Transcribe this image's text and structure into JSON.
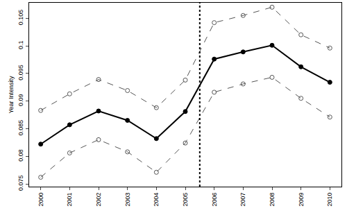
{
  "chart_data": {
    "type": "line",
    "y_label": "Year Intensity",
    "x": [
      2000,
      2001,
      2002,
      2003,
      2004,
      2005,
      2006,
      2007,
      2008,
      2009,
      2010
    ],
    "series": [
      {
        "color": "#000000",
        "line_style": "solid",
        "marker": "filled",
        "values": [
          0.0822,
          0.0857,
          0.0882,
          0.0865,
          0.0832,
          0.0881,
          0.0976,
          0.0989,
          0.1001,
          0.0962,
          0.0934
        ]
      },
      {
        "color": "#555555",
        "line_style": "dashed",
        "marker": "open",
        "values": [
          0.0883,
          0.0913,
          0.0939,
          0.0919,
          0.0888,
          0.0938,
          0.1042,
          0.1055,
          0.107,
          0.102,
          0.0996
        ]
      },
      {
        "color": "#555555",
        "line_style": "dashed",
        "marker": "open",
        "values": [
          0.0762,
          0.0806,
          0.083,
          0.0808,
          0.0771,
          0.0824,
          0.0916,
          0.0931,
          0.0943,
          0.0905,
          0.0871
        ]
      }
    ],
    "vline": 2005.5,
    "xlim": [
      1999.6,
      2010.4
    ],
    "xticks": [
      2000,
      2001,
      2002,
      2003,
      2004,
      2005,
      2006,
      2007,
      2008,
      2009,
      2010
    ],
    "ylim": [
      0.0745,
      0.1078
    ],
    "yticks": [
      0.075,
      0.08,
      0.085,
      0.09,
      0.095,
      0.1,
      0.105
    ],
    "grid": false
  }
}
